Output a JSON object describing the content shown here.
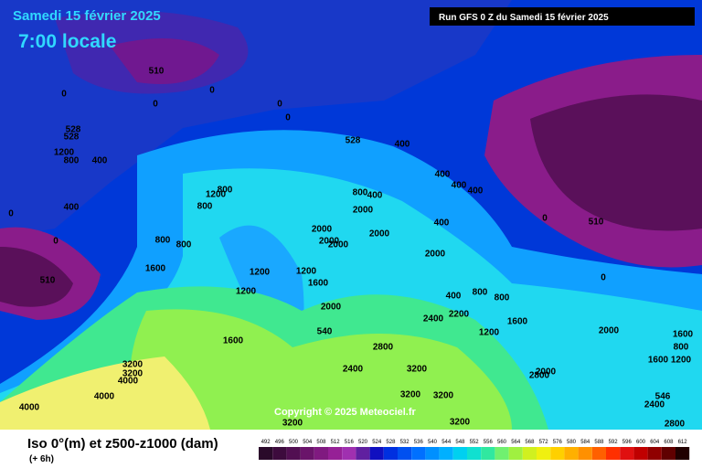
{
  "header": {
    "date": "Samedi 15 février 2025",
    "time": "7:00 locale",
    "run": "Run GFS 0 Z du Samedi 15 février 2025"
  },
  "map": {
    "copyright": "Copyright © 2025 Meteociel.fr",
    "contour_labels": [
      "0",
      "0",
      "0",
      "0",
      "0",
      "0",
      "0",
      "0",
      "0",
      "510",
      "510",
      "510",
      "528",
      "528",
      "528",
      "540",
      "1200",
      "800",
      "400",
      "400",
      "400",
      "400",
      "400",
      "400",
      "800",
      "1200",
      "800",
      "800",
      "800",
      "1600",
      "1200",
      "1200",
      "800",
      "400",
      "2000",
      "2000",
      "2000",
      "2000",
      "2000",
      "400",
      "2000",
      "1200",
      "1600",
      "2000",
      "800",
      "800",
      "400",
      "2400",
      "2200",
      "1200",
      "1600",
      "2000",
      "2800",
      "1600",
      "3200",
      "3200",
      "4000",
      "4000",
      "4000",
      "2400",
      "3200",
      "2000",
      "2800",
      "3200",
      "3200",
      "3200",
      "3200",
      "2400",
      "2800",
      "1600",
      "1200",
      "800",
      "1600",
      "546"
    ]
  },
  "footer": {
    "title": "Iso 0°(m) et z500-z1000 (dam)",
    "step": "(+ 6h)"
  },
  "colorbar": {
    "values": [
      492,
      496,
      500,
      504,
      508,
      512,
      516,
      520,
      524,
      528,
      532,
      536,
      540,
      544,
      548,
      552,
      556,
      560,
      564,
      568,
      572,
      576,
      580,
      584,
      588,
      592,
      596,
      600,
      604,
      608,
      612
    ],
    "colors": [
      "#2a0a2a",
      "#3d0b3d",
      "#520f52",
      "#6a146a",
      "#801a80",
      "#962096",
      "#a030b0",
      "#6020a0",
      "#1010c0",
      "#0030e0",
      "#0050f0",
      "#0070ff",
      "#0090ff",
      "#00b0ff",
      "#00d0f0",
      "#10e0d0",
      "#30e8a0",
      "#70f070",
      "#a0f040",
      "#d0f020",
      "#f0f010",
      "#ffd000",
      "#ffb000",
      "#ff9000",
      "#ff6000",
      "#ff3000",
      "#e01010",
      "#c00000",
      "#900000",
      "#600000",
      "#200000"
    ]
  }
}
